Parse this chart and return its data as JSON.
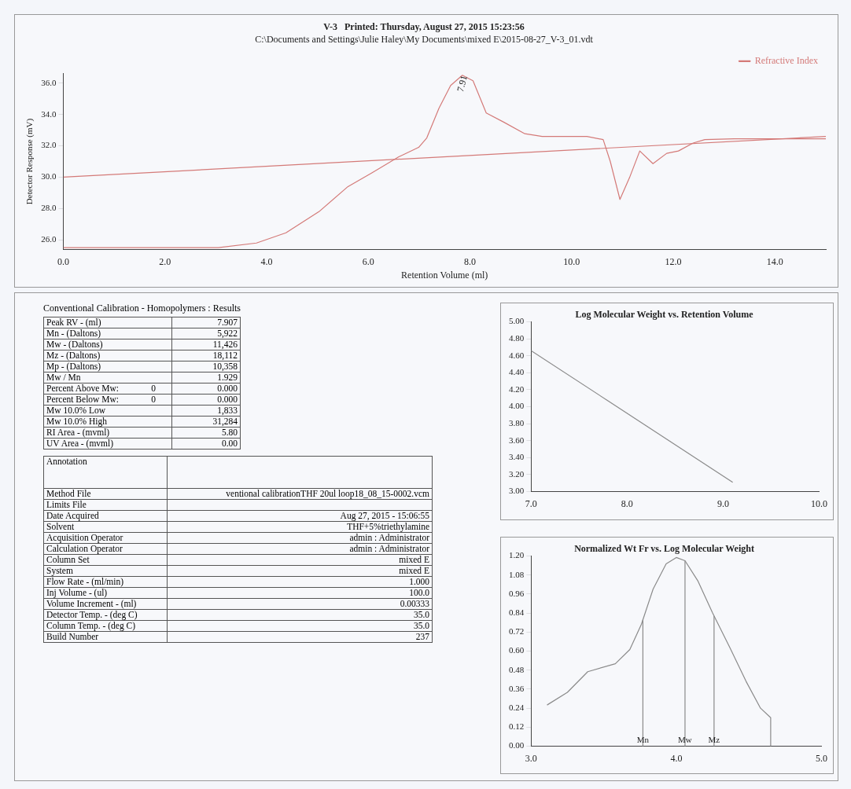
{
  "chart_data": [
    {
      "type": "line",
      "title": "V-3   Printed: Thursday, August 27, 2015 15:23:56",
      "subtitle": "C:\\Documents and Settings\\Julie Haley\\My Documents\\mixed E\\2015-08-27_V-3_01.vdt",
      "xlabel": "Retention Volume (ml)",
      "ylabel": "Detector Response (mV)",
      "xlim": [
        0,
        15
      ],
      "ylim": [
        25.4,
        36.6
      ],
      "xticks": [
        {
          "value": 0,
          "label": "0.0"
        },
        {
          "value": 2,
          "label": "2.0"
        },
        {
          "value": 4,
          "label": "4.0"
        },
        {
          "value": 6,
          "label": "6.0"
        },
        {
          "value": 8,
          "label": "8.0"
        },
        {
          "value": 10,
          "label": "10.0"
        },
        {
          "value": 12,
          "label": "12.0"
        },
        {
          "value": 14,
          "label": "14.0"
        }
      ],
      "yticks": [
        {
          "value": 26,
          "label": "26.0"
        },
        {
          "value": 28,
          "label": "28.0"
        },
        {
          "value": 30,
          "label": "30.0"
        },
        {
          "value": 32,
          "label": "32.0"
        },
        {
          "value": 34,
          "label": "34.0"
        },
        {
          "value": 36,
          "label": "36.0"
        }
      ],
      "grid": false,
      "legend": "top right",
      "annotations": [
        {
          "text": "7.91",
          "x": 7.91,
          "y": 36.5
        }
      ],
      "series": [
        {
          "name": "Refractive Index",
          "color": "#d47a78",
          "x": [
            0,
            1.5,
            3.05,
            3.8,
            4.38,
            5.03,
            5.6,
            6.07,
            6.6,
            6.99,
            7.15,
            7.39,
            7.62,
            7.85,
            8.06,
            8.32,
            8.67,
            9.08,
            9.42,
            10.3,
            10.62,
            10.76,
            10.95,
            11.14,
            11.34,
            11.6,
            11.87,
            12.1,
            12.39,
            12.62,
            13.2,
            15.0
          ],
          "values": [
            25.5,
            25.5,
            25.5,
            25.8,
            26.45,
            27.8,
            29.4,
            30.27,
            31.3,
            31.9,
            32.5,
            34.4,
            35.85,
            36.5,
            36.15,
            34.1,
            33.5,
            32.77,
            32.6,
            32.6,
            32.4,
            31.0,
            28.58,
            29.98,
            31.67,
            30.86,
            31.52,
            31.67,
            32.18,
            32.4,
            32.45,
            32.45
          ]
        },
        {
          "color": "#d47a78",
          "x": [
            0,
            15
          ],
          "values": [
            30.0,
            32.6
          ]
        }
      ]
    },
    {
      "type": "other",
      "title": "Conventional Calibration - Homopolymers : Results",
      "y_categories": [
        "Peak RV - (ml)",
        "Mn - (Daltons)",
        "Mw - (Daltons)",
        "Mz - (Daltons)",
        "Mp - (Daltons)",
        "Mw / Mn",
        "Percent Above Mw:",
        "Percent Below Mw:",
        "Mw 10.0% Low",
        "Mw 10.0% High",
        "RI Area - (mvml)",
        "UV Area - (mvml)"
      ],
      "cell_labels": [
        [
          null,
          "7.907"
        ],
        [
          null,
          "5,922"
        ],
        [
          null,
          "11,426"
        ],
        [
          null,
          "18,112"
        ],
        [
          null,
          "10,358"
        ],
        [
          null,
          "1.929"
        ],
        [
          "0",
          "0.000"
        ],
        [
          "0",
          "0.000"
        ],
        [
          null,
          "1,833"
        ],
        [
          null,
          "31,284"
        ],
        [
          null,
          "5.80"
        ],
        [
          null,
          "0.00"
        ]
      ]
    },
    {
      "type": "other",
      "y_categories": [
        "Annotation",
        "Method File",
        "Limits File",
        "Date Acquired",
        "Solvent",
        "Acquisition Operator",
        "Calculation Operator",
        "Column Set",
        "System",
        "Flow Rate - (ml/min)",
        "Inj Volume - (ul)",
        "Volume Increment - (ml)",
        "Detector Temp. - (deg C)",
        "Column Temp. - (deg C)",
        "Build Number"
      ],
      "cell_labels": [
        [
          null
        ],
        [
          "ventional calibrationTHF 20ul loop18_08_15-0002.vcm"
        ],
        [
          null
        ],
        [
          "Aug 27, 2015 - 15:06:55"
        ],
        [
          "THF+5%triethylamine"
        ],
        [
          "admin : Administrator"
        ],
        [
          "admin : Administrator"
        ],
        [
          "mixed E"
        ],
        [
          "mixed E"
        ],
        [
          "1.000"
        ],
        [
          "100.0"
        ],
        [
          "0.00333"
        ],
        [
          "35.0"
        ],
        [
          "35.0"
        ],
        [
          "237"
        ]
      ]
    },
    {
      "type": "line",
      "title": "Log Molecular Weight vs. Retention Volume",
      "xlim": [
        7,
        10
      ],
      "ylim": [
        3,
        5
      ],
      "xticks": [
        {
          "value": 7,
          "label": "7.0"
        },
        {
          "value": 8,
          "label": "8.0"
        },
        {
          "value": 9,
          "label": "9.0"
        },
        {
          "value": 10,
          "label": "10.0"
        }
      ],
      "yticks": [
        {
          "value": 3,
          "label": "3.00"
        },
        {
          "value": 3.2,
          "label": "3.20"
        },
        {
          "value": 3.4,
          "label": "3.40"
        },
        {
          "value": 3.6,
          "label": "3.60"
        },
        {
          "value": 3.8,
          "label": "3.80"
        },
        {
          "value": 4,
          "label": "4.00"
        },
        {
          "value": 4.2,
          "label": "4.20"
        },
        {
          "value": 4.4,
          "label": "4.40"
        },
        {
          "value": 4.6,
          "label": "4.60"
        },
        {
          "value": 4.8,
          "label": "4.80"
        },
        {
          "value": 5,
          "label": "5.00"
        }
      ],
      "grid": false,
      "series": [
        {
          "color": "#8a8a8a",
          "x": [
            7.0,
            9.1
          ],
          "values": [
            4.66,
            3.11
          ]
        }
      ]
    },
    {
      "type": "line",
      "title": "Normalized Wt Fr vs. Log Molecular Weight",
      "xlim": [
        3,
        5
      ],
      "ylim": [
        0,
        1.2
      ],
      "xticks": [
        {
          "value": 3,
          "label": "3.0"
        },
        {
          "value": 4,
          "label": "4.0"
        },
        {
          "value": 5,
          "label": "5.0"
        }
      ],
      "yticks": [
        {
          "value": 0,
          "label": "0.00"
        },
        {
          "value": 0.12,
          "label": "0.12"
        },
        {
          "value": 0.24,
          "label": "0.24"
        },
        {
          "value": 0.36,
          "label": "0.36"
        },
        {
          "value": 0.48,
          "label": "0.48"
        },
        {
          "value": 0.6,
          "label": "0.60"
        },
        {
          "value": 0.72,
          "label": "0.72"
        },
        {
          "value": 0.84,
          "label": "0.84"
        },
        {
          "value": 0.96,
          "label": "0.96"
        },
        {
          "value": 1.08,
          "label": "1.08"
        },
        {
          "value": 1.2,
          "label": "1.20"
        }
      ],
      "grid": false,
      "ref_lines": [
        {
          "axis": "x",
          "value": 3.77,
          "label": "Mn"
        },
        {
          "axis": "x",
          "value": 4.06,
          "label": "Mw"
        },
        {
          "axis": "x",
          "value": 4.26,
          "label": "Mz"
        }
      ],
      "series": [
        {
          "color": "#8a8a8a",
          "x": [
            3.11,
            3.25,
            3.39,
            3.58,
            3.68,
            3.76,
            3.84,
            3.93,
            4.0,
            4.06,
            4.15,
            4.25,
            4.37,
            4.48,
            4.58,
            4.65,
            4.65
          ],
          "values": [
            0.26,
            0.34,
            0.47,
            0.52,
            0.61,
            0.77,
            0.99,
            1.15,
            1.19,
            1.17,
            1.04,
            0.84,
            0.62,
            0.41,
            0.24,
            0.18,
            0
          ]
        }
      ]
    }
  ]
}
